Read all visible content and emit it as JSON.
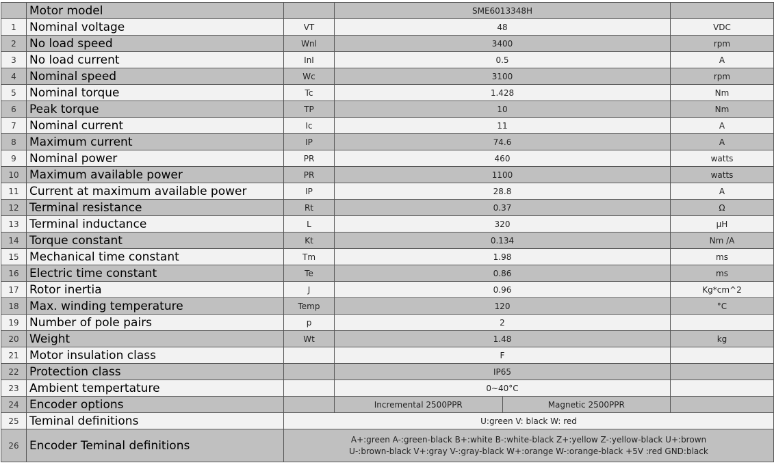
{
  "header": {
    "name": "Motor model",
    "value": "SME6013348H"
  },
  "rows": [
    {
      "no": "1",
      "name": "Nominal voltage",
      "symbol": "VT",
      "value": "48",
      "unit": "VDC"
    },
    {
      "no": "2",
      "name": "No load speed",
      "symbol": "Wnl",
      "value": "3400",
      "unit": "rpm"
    },
    {
      "no": "3",
      "name": "No load current",
      "symbol": "InI",
      "value": "0.5",
      "unit": "A"
    },
    {
      "no": "4",
      "name": "Nominal speed",
      "symbol": "Wc",
      "value": "3100",
      "unit": "rpm"
    },
    {
      "no": "5",
      "name": "Nominal torque",
      "symbol": "Tc",
      "value": "1.428",
      "unit": "Nm"
    },
    {
      "no": "6",
      "name": "Peak torque",
      "symbol": "TP",
      "value": "10",
      "unit": "Nm"
    },
    {
      "no": "7",
      "name": "Nominal current",
      "symbol": "Ic",
      "value": "11",
      "unit": "A"
    },
    {
      "no": "8",
      "name": "Maximum current",
      "symbol": "IP",
      "value": "74.6",
      "unit": "A"
    },
    {
      "no": "9",
      "name": "Nominal power",
      "symbol": "PR",
      "value": "460",
      "unit": "watts"
    },
    {
      "no": "10",
      "name": "Maximum available power",
      "symbol": "PR",
      "value": "1100",
      "unit": "watts"
    },
    {
      "no": "11",
      "name": "Current at maximum available power",
      "symbol": "IP",
      "value": "28.8",
      "unit": "A"
    },
    {
      "no": "12",
      "name": "Terminal resistance",
      "symbol": "Rt",
      "value": "0.37",
      "unit": "Ω"
    },
    {
      "no": "13",
      "name": "Terminal inductance",
      "symbol": "L",
      "value": "320",
      "unit": "μH"
    },
    {
      "no": "14",
      "name": "Torque constant",
      "symbol": "Kt",
      "value": "0.134",
      "unit": "Nm /A"
    },
    {
      "no": "15",
      "name": "Mechanical time constant",
      "symbol": "Tm",
      "value": "1.98",
      "unit": "ms"
    },
    {
      "no": "16",
      "name": "Electric time constant",
      "symbol": "Te",
      "value": "0.86",
      "unit": "ms"
    },
    {
      "no": "17",
      "name": "Rotor inertia",
      "symbol": "J",
      "value": "0.96",
      "unit": "Kg*cm^2"
    },
    {
      "no": "18",
      "name": "Max. winding temperature",
      "symbol": "Temp",
      "value": "120",
      "unit": "°C"
    },
    {
      "no": "19",
      "name": "Number of pole pairs",
      "symbol": "p",
      "value": "2",
      "unit": ""
    },
    {
      "no": "20",
      "name": "Weight",
      "symbol": "Wt",
      "value": "1.48",
      "unit": "kg"
    },
    {
      "no": "21",
      "name": "Motor insulation class",
      "symbol": "",
      "value": "F",
      "unit": ""
    },
    {
      "no": "22",
      "name": "Protection class",
      "symbol": "",
      "value": "IP65",
      "unit": ""
    },
    {
      "no": "23",
      "name": "Ambient tempertature",
      "symbol": "",
      "value": "0~40°C",
      "unit": ""
    }
  ],
  "encoder_options": {
    "no": "24",
    "name": "Encoder options",
    "option_a": "Incremental  2500PPR",
    "option_b": "Magnetic  2500PPR"
  },
  "terminal_definitions": {
    "no": "25",
    "name": "Teminal definitions",
    "value": "U:green  V: black  W: red"
  },
  "encoder_terminal_definitions": {
    "no": "26",
    "name": "Encoder Teminal definitions",
    "line1": "A+:green  A-:green-black  B+:white  B-:white-black  Z+:yellow  Z-:yellow-black  U+:brown",
    "line2": "U-:brown-black   V+:gray  V-:gray-black  W+:orange  W-:orange-black  +5V :red  GND:black"
  }
}
